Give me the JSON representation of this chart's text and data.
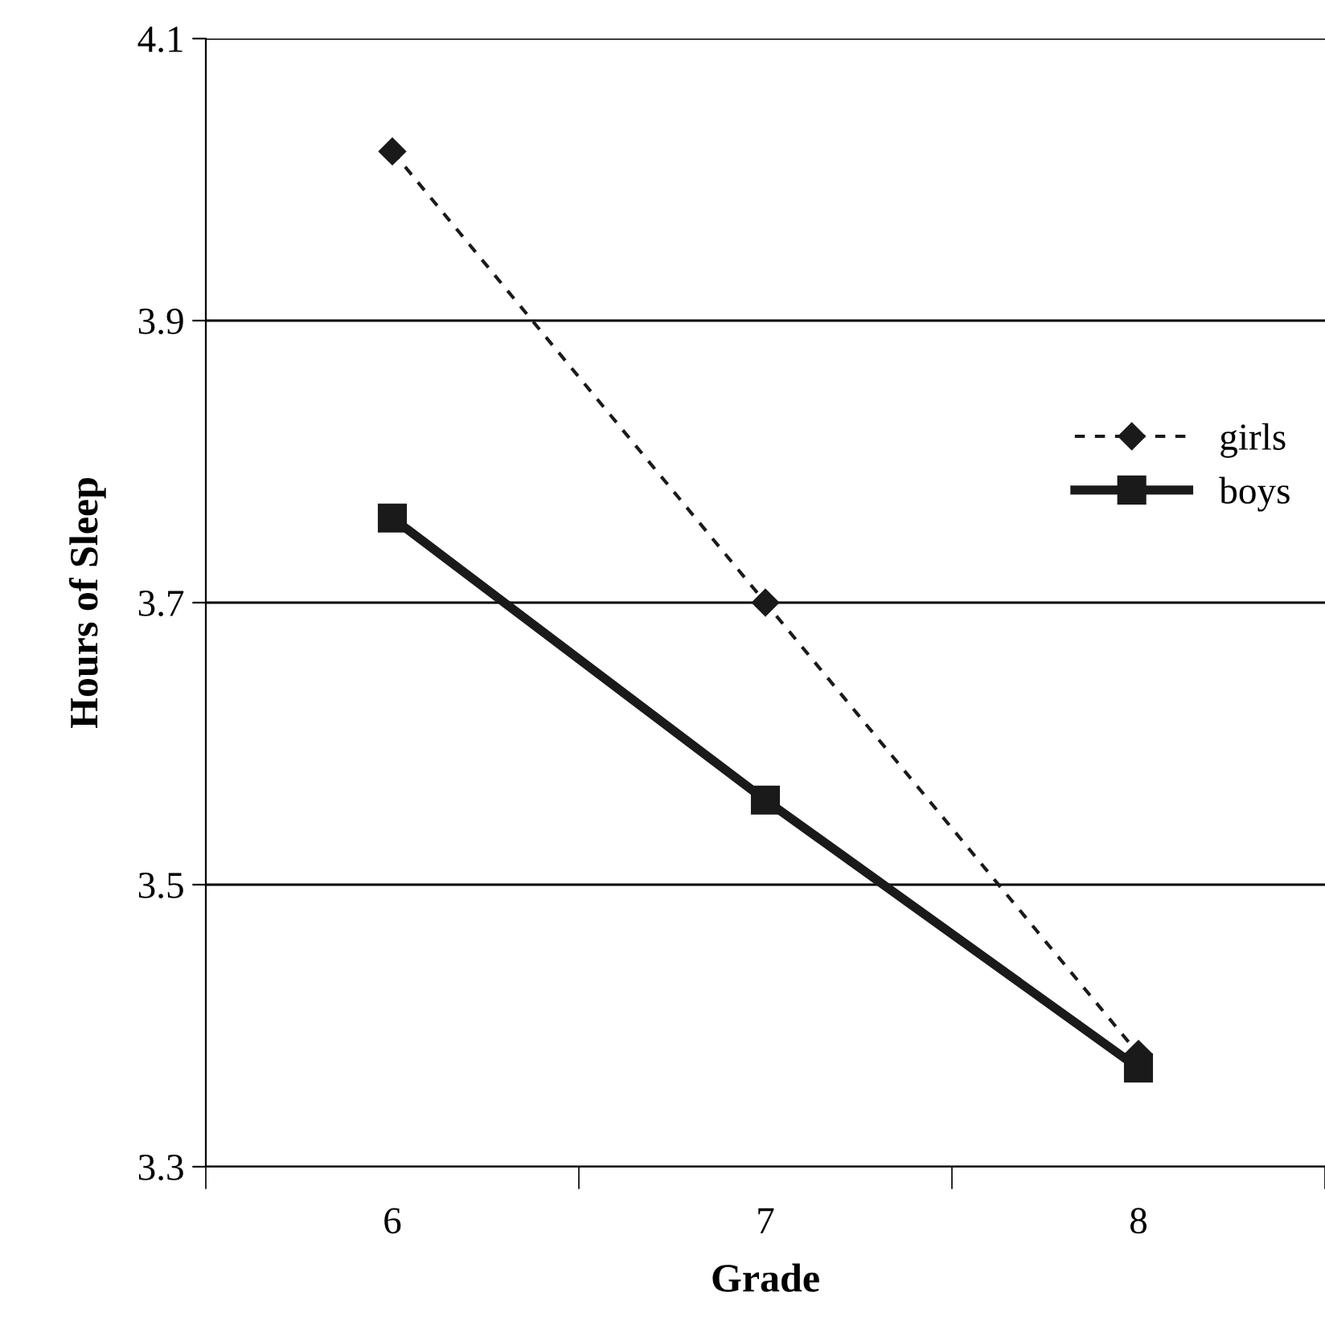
{
  "chart_data": {
    "type": "line",
    "xlabel": "Grade",
    "ylabel": "Hours of Sleep",
    "categories": [
      "6",
      "7",
      "8"
    ],
    "series": [
      {
        "name": "girls",
        "color": "#1a1a1a",
        "values": [
          4.02,
          3.7,
          3.38
        ],
        "marker": "diamond",
        "line_style": "dashed"
      },
      {
        "name": "boys",
        "color": "#1a1a1a",
        "values": [
          3.76,
          3.56,
          3.37
        ],
        "marker": "square",
        "line_style": "solid"
      }
    ],
    "ylim": [
      3.3,
      4.1
    ],
    "yticks": [
      3.3,
      3.5,
      3.7,
      3.9,
      4.1
    ],
    "grid": "y",
    "legend": "right"
  }
}
